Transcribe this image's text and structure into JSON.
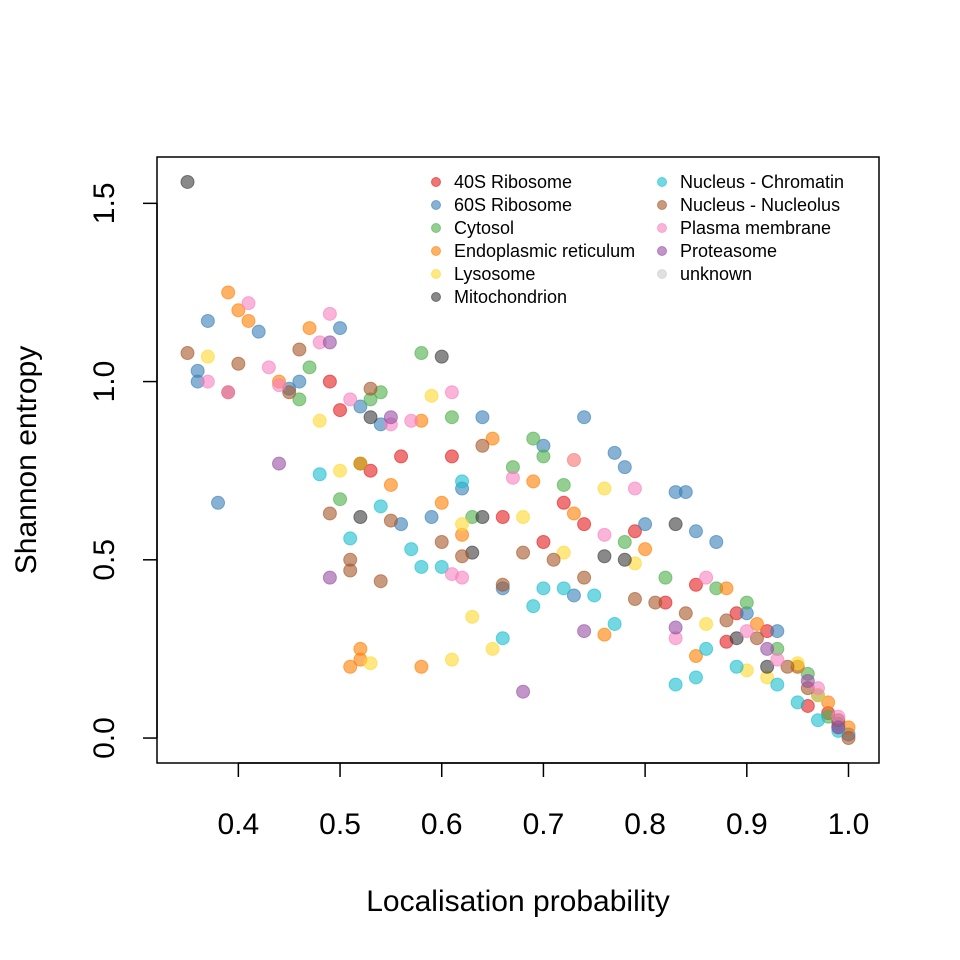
{
  "chart_data": {
    "type": "scatter",
    "title": "",
    "xlabel": "Localisation probability",
    "ylabel": "Shannon entropy",
    "xlim": [
      0.32,
      1.03
    ],
    "ylim": [
      -0.07,
      1.63
    ],
    "xticks": [
      0.4,
      0.5,
      0.6,
      0.7,
      0.8,
      0.9,
      1.0
    ],
    "yticks": [
      0.0,
      0.5,
      1.0,
      1.5
    ],
    "xtick_labels": [
      "0.4",
      "0.5",
      "0.6",
      "0.7",
      "0.8",
      "0.9",
      "1.0"
    ],
    "ytick_labels": [
      "0.0",
      "0.5",
      "1.0",
      "1.5"
    ],
    "grid": false,
    "legend_position": "top-right",
    "series": [
      {
        "name": "40S Ribosome",
        "color": "#E41A1C",
        "points": [
          [
            0.49,
            1.0
          ],
          [
            0.5,
            0.92
          ],
          [
            0.53,
            0.75
          ],
          [
            0.56,
            0.79
          ],
          [
            0.61,
            0.79
          ],
          [
            0.66,
            0.62
          ],
          [
            0.7,
            0.55
          ],
          [
            0.72,
            0.66
          ],
          [
            0.74,
            0.6
          ],
          [
            0.79,
            0.58
          ],
          [
            0.82,
            0.38
          ],
          [
            0.85,
            0.43
          ],
          [
            0.88,
            0.27
          ],
          [
            0.89,
            0.35
          ],
          [
            0.92,
            0.3
          ],
          [
            0.96,
            0.09
          ],
          [
            0.98,
            0.07
          ],
          [
            0.99,
            0.03
          ]
        ]
      },
      {
        "name": "60S Ribosome",
        "color": "#377EB8",
        "points": [
          [
            0.36,
            1.03
          ],
          [
            0.36,
            1.0
          ],
          [
            0.37,
            1.17
          ],
          [
            0.38,
            0.66
          ],
          [
            0.42,
            1.14
          ],
          [
            0.45,
            0.98
          ],
          [
            0.46,
            1.0
          ],
          [
            0.5,
            1.15
          ],
          [
            0.52,
            0.93
          ],
          [
            0.54,
            0.88
          ],
          [
            0.56,
            0.6
          ],
          [
            0.59,
            0.62
          ],
          [
            0.62,
            0.7
          ],
          [
            0.64,
            0.9
          ],
          [
            0.66,
            0.42
          ],
          [
            0.7,
            0.82
          ],
          [
            0.73,
            0.4
          ],
          [
            0.74,
            0.9
          ],
          [
            0.77,
            0.8
          ],
          [
            0.78,
            0.76
          ],
          [
            0.8,
            0.6
          ],
          [
            0.83,
            0.69
          ],
          [
            0.84,
            0.69
          ],
          [
            0.85,
            0.58
          ],
          [
            0.87,
            0.55
          ],
          [
            0.9,
            0.35
          ],
          [
            0.93,
            0.3
          ],
          [
            0.95,
            0.2
          ],
          [
            0.97,
            0.12
          ],
          [
            0.99,
            0.04
          ],
          [
            1.0,
            0.01
          ]
        ]
      },
      {
        "name": "Cytosol",
        "color": "#4DAF4A",
        "points": [
          [
            0.46,
            0.95
          ],
          [
            0.47,
            1.04
          ],
          [
            0.5,
            0.67
          ],
          [
            0.52,
            0.77
          ],
          [
            0.53,
            0.95
          ],
          [
            0.54,
            0.97
          ],
          [
            0.58,
            1.08
          ],
          [
            0.61,
            0.9
          ],
          [
            0.63,
            0.62
          ],
          [
            0.67,
            0.76
          ],
          [
            0.69,
            0.84
          ],
          [
            0.7,
            0.79
          ],
          [
            0.72,
            0.71
          ],
          [
            0.78,
            0.55
          ],
          [
            0.82,
            0.45
          ],
          [
            0.87,
            0.42
          ],
          [
            0.9,
            0.38
          ],
          [
            0.93,
            0.25
          ],
          [
            0.96,
            0.18
          ],
          [
            0.98,
            0.06
          ]
        ]
      },
      {
        "name": "Endoplasmic reticulum",
        "color": "#FF7F00",
        "points": [
          [
            0.39,
            1.25
          ],
          [
            0.4,
            1.2
          ],
          [
            0.41,
            1.17
          ],
          [
            0.44,
            1.0
          ],
          [
            0.47,
            1.15
          ],
          [
            0.51,
            0.2
          ],
          [
            0.52,
            0.22
          ],
          [
            0.52,
            0.25
          ],
          [
            0.52,
            0.77
          ],
          [
            0.55,
            0.71
          ],
          [
            0.58,
            0.2
          ],
          [
            0.58,
            0.89
          ],
          [
            0.6,
            0.66
          ],
          [
            0.62,
            0.57
          ],
          [
            0.65,
            0.84
          ],
          [
            0.69,
            0.72
          ],
          [
            0.73,
            0.63
          ],
          [
            0.76,
            0.29
          ],
          [
            0.8,
            0.53
          ],
          [
            0.85,
            0.23
          ],
          [
            0.88,
            0.42
          ],
          [
            0.91,
            0.32
          ],
          [
            0.95,
            0.2
          ],
          [
            0.98,
            0.1
          ],
          [
            1.0,
            0.03
          ]
        ]
      },
      {
        "name": "Lysosome",
        "color": "#FFD92F",
        "points": [
          [
            0.37,
            1.07
          ],
          [
            0.48,
            0.89
          ],
          [
            0.5,
            0.75
          ],
          [
            0.53,
            0.21
          ],
          [
            0.59,
            0.96
          ],
          [
            0.61,
            0.22
          ],
          [
            0.62,
            0.6
          ],
          [
            0.63,
            0.34
          ],
          [
            0.65,
            0.25
          ],
          [
            0.68,
            0.62
          ],
          [
            0.72,
            0.52
          ],
          [
            0.73,
            0.78
          ],
          [
            0.76,
            0.7
          ],
          [
            0.79,
            0.49
          ],
          [
            0.86,
            0.32
          ],
          [
            0.9,
            0.19
          ],
          [
            0.92,
            0.17
          ],
          [
            0.95,
            0.21
          ],
          [
            0.97,
            0.12
          ]
        ]
      },
      {
        "name": "Mitochondrion",
        "color": "#3B3B3B",
        "points": [
          [
            0.35,
            1.56
          ],
          [
            0.53,
            0.9
          ],
          [
            0.52,
            0.62
          ],
          [
            0.6,
            1.07
          ],
          [
            0.63,
            0.52
          ],
          [
            0.64,
            0.62
          ],
          [
            0.76,
            0.51
          ],
          [
            0.78,
            0.5
          ],
          [
            0.83,
            0.6
          ],
          [
            0.89,
            0.28
          ],
          [
            0.92,
            0.2
          ]
        ]
      },
      {
        "name": "Nucleus - Chromatin",
        "color": "#17BECF",
        "points": [
          [
            0.48,
            0.74
          ],
          [
            0.51,
            0.56
          ],
          [
            0.54,
            0.65
          ],
          [
            0.57,
            0.53
          ],
          [
            0.58,
            0.48
          ],
          [
            0.6,
            0.48
          ],
          [
            0.62,
            0.72
          ],
          [
            0.66,
            0.28
          ],
          [
            0.69,
            0.37
          ],
          [
            0.7,
            0.42
          ],
          [
            0.72,
            0.42
          ],
          [
            0.75,
            0.4
          ],
          [
            0.77,
            0.32
          ],
          [
            0.83,
            0.15
          ],
          [
            0.85,
            0.17
          ],
          [
            0.86,
            0.25
          ],
          [
            0.89,
            0.2
          ],
          [
            0.93,
            0.15
          ],
          [
            0.95,
            0.1
          ],
          [
            0.97,
            0.05
          ],
          [
            0.99,
            0.02
          ]
        ]
      },
      {
        "name": "Nucleus - Nucleolus",
        "color": "#A65628",
        "points": [
          [
            0.35,
            1.08
          ],
          [
            0.39,
            0.97
          ],
          [
            0.4,
            1.05
          ],
          [
            0.45,
            0.97
          ],
          [
            0.46,
            1.09
          ],
          [
            0.49,
            0.63
          ],
          [
            0.51,
            0.5
          ],
          [
            0.51,
            0.47
          ],
          [
            0.53,
            0.98
          ],
          [
            0.54,
            0.44
          ],
          [
            0.55,
            0.61
          ],
          [
            0.6,
            0.55
          ],
          [
            0.62,
            0.51
          ],
          [
            0.64,
            0.82
          ],
          [
            0.66,
            0.43
          ],
          [
            0.68,
            0.52
          ],
          [
            0.71,
            0.5
          ],
          [
            0.74,
            0.45
          ],
          [
            0.79,
            0.39
          ],
          [
            0.81,
            0.38
          ],
          [
            0.84,
            0.35
          ],
          [
            0.88,
            0.33
          ],
          [
            0.91,
            0.28
          ],
          [
            0.94,
            0.2
          ],
          [
            0.96,
            0.14
          ],
          [
            0.99,
            0.05
          ],
          [
            1.0,
            0.0
          ]
        ]
      },
      {
        "name": "Plasma membrane",
        "color": "#F781BF",
        "points": [
          [
            0.37,
            1.0
          ],
          [
            0.39,
            0.97
          ],
          [
            0.41,
            1.22
          ],
          [
            0.43,
            1.04
          ],
          [
            0.44,
            0.99
          ],
          [
            0.48,
            1.11
          ],
          [
            0.49,
            1.19
          ],
          [
            0.51,
            0.95
          ],
          [
            0.55,
            0.88
          ],
          [
            0.57,
            0.89
          ],
          [
            0.61,
            0.97
          ],
          [
            0.61,
            0.46
          ],
          [
            0.62,
            0.45
          ],
          [
            0.67,
            0.73
          ],
          [
            0.73,
            0.78
          ],
          [
            0.76,
            0.57
          ],
          [
            0.79,
            0.7
          ],
          [
            0.83,
            0.28
          ],
          [
            0.86,
            0.45
          ],
          [
            0.9,
            0.3
          ],
          [
            0.93,
            0.22
          ],
          [
            0.97,
            0.14
          ],
          [
            0.99,
            0.06
          ]
        ]
      },
      {
        "name": "Proteasome",
        "color": "#984EA3",
        "points": [
          [
            0.44,
            0.77
          ],
          [
            0.49,
            1.11
          ],
          [
            0.49,
            0.45
          ],
          [
            0.55,
            0.9
          ],
          [
            0.68,
            0.13
          ],
          [
            0.74,
            0.3
          ],
          [
            0.83,
            0.31
          ],
          [
            0.92,
            0.25
          ],
          [
            0.96,
            0.16
          ],
          [
            0.99,
            0.03
          ]
        ]
      },
      {
        "name": "unknown",
        "color": "#CCCCCC",
        "points": []
      }
    ]
  },
  "legend": {
    "columns": [
      [
        "40S Ribosome",
        "60S Ribosome",
        "Cytosol",
        "Endoplasmic reticulum",
        "Lysosome",
        "Mitochondrion"
      ],
      [
        "Nucleus - Chromatin",
        "Nucleus - Nucleolus",
        "Plasma membrane",
        "Proteasome",
        "unknown"
      ]
    ]
  }
}
